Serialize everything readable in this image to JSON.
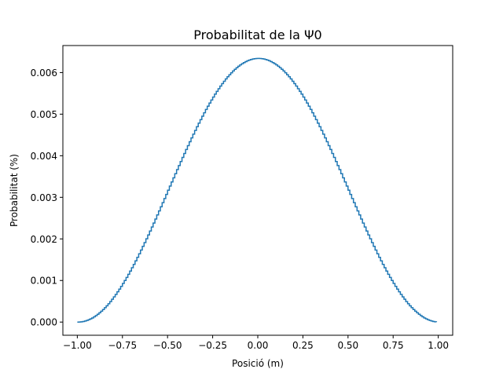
{
  "chart_data": {
    "type": "line",
    "drawstyle": "steps",
    "title": "Probabilitat de la Ψ0",
    "xlabel": "Posició (m)",
    "ylabel": "Probabilitat (%)",
    "xlim": [
      -1.08,
      1.08
    ],
    "ylim": [
      -0.000317,
      0.00665
    ],
    "xticks": [
      -1.0,
      -0.75,
      -0.5,
      -0.25,
      0.0,
      0.25,
      0.5,
      0.75,
      1.0
    ],
    "xtick_labels": [
      "−1.00",
      "−0.75",
      "−0.50",
      "−0.25",
      "0.00",
      "0.25",
      "0.50",
      "0.75",
      "1.00"
    ],
    "yticks": [
      0.0,
      0.001,
      0.002,
      0.003,
      0.004,
      0.005,
      0.006
    ],
    "ytick_labels": [
      "0.000",
      "0.001",
      "0.002",
      "0.003",
      "0.004",
      "0.005",
      "0.006"
    ],
    "grid": false,
    "series_color": "#1f77b4",
    "x_range": [
      -1.0,
      0.99
    ],
    "n_points": 200,
    "peak_value": 0.00634,
    "note_formula": "p(x) = peak * cos^2(pi*x/2)"
  }
}
